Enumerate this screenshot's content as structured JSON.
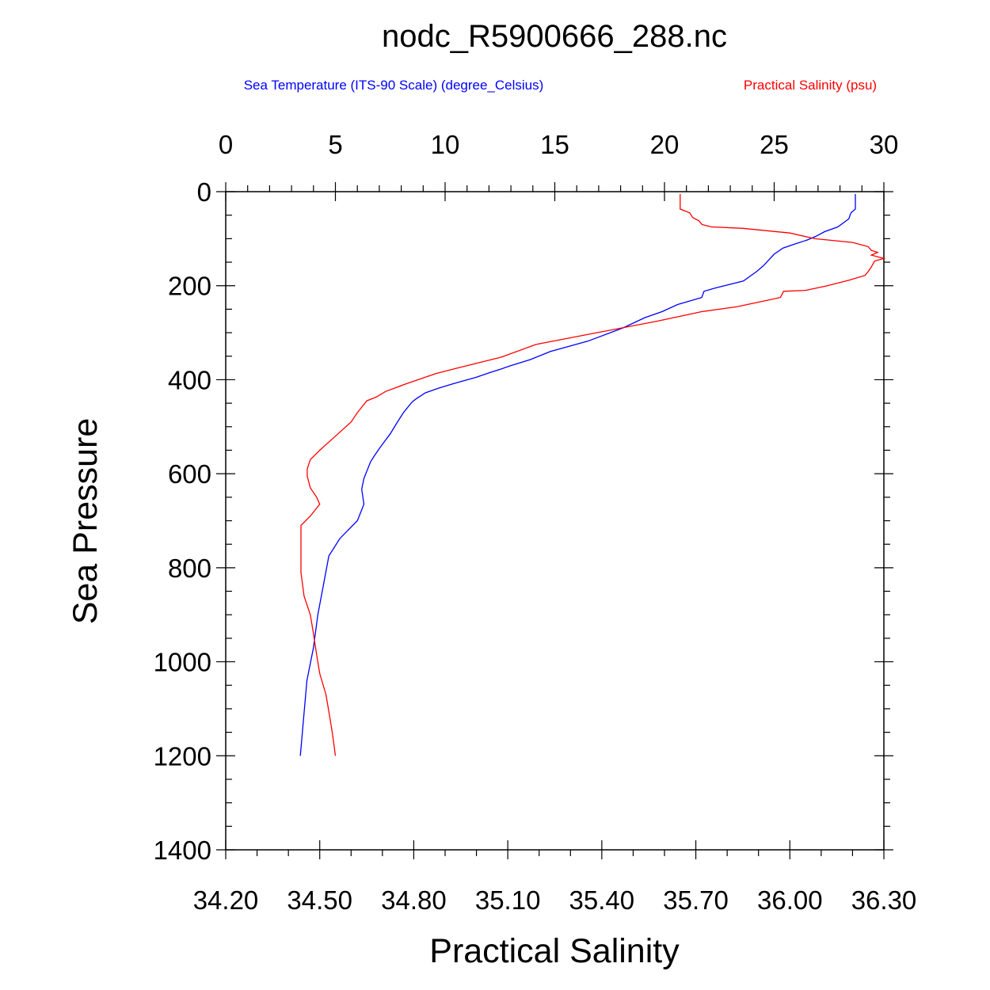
{
  "chart_data": {
    "type": "line",
    "title": "nodc_R5900666_288.nc",
    "xlabel": "Practical Salinity",
    "ylabel": "Sea Pressure",
    "grid": false,
    "legend_placement": "top",
    "y_axis": {
      "range": [
        0,
        1400
      ],
      "inverted": true,
      "ticks": [
        "0",
        "200",
        "400",
        "600",
        "800",
        "1000",
        "1200",
        "1400"
      ]
    },
    "x_axis_bottom": {
      "label": "Practical Salinity",
      "range": [
        34.2,
        36.3
      ],
      "ticks": [
        "34.20",
        "34.50",
        "34.80",
        "35.10",
        "35.40",
        "35.70",
        "36.00",
        "36.30"
      ]
    },
    "x_axis_top": {
      "range": [
        0,
        30
      ],
      "ticks": [
        "0",
        "5",
        "10",
        "15",
        "20",
        "25",
        "30"
      ]
    },
    "series": [
      {
        "name": "Sea Temperature (ITS-90 Scale) (degree_Celsius)",
        "color": "#0000ff",
        "axis": "top",
        "points": [
          [
            28.7,
            5
          ],
          [
            28.7,
            37
          ],
          [
            28.5,
            45
          ],
          [
            28.4,
            58
          ],
          [
            27.9,
            75
          ],
          [
            27.3,
            85
          ],
          [
            26.9,
            95
          ],
          [
            26.5,
            103
          ],
          [
            25.9,
            112
          ],
          [
            25.4,
            120
          ],
          [
            25.0,
            133
          ],
          [
            24.7,
            148
          ],
          [
            24.5,
            158
          ],
          [
            24.2,
            170
          ],
          [
            23.6,
            190
          ],
          [
            22.3,
            205
          ],
          [
            21.8,
            212
          ],
          [
            21.7,
            225
          ],
          [
            20.6,
            240
          ],
          [
            19.9,
            255
          ],
          [
            19.1,
            268
          ],
          [
            18.1,
            290
          ],
          [
            16.5,
            318
          ],
          [
            14.8,
            340
          ],
          [
            13.9,
            357
          ],
          [
            13.0,
            370
          ],
          [
            12.5,
            378
          ],
          [
            12.1,
            384
          ],
          [
            11.4,
            395
          ],
          [
            10.4,
            408
          ],
          [
            9.7,
            418
          ],
          [
            9.1,
            428
          ],
          [
            8.7,
            440
          ],
          [
            8.5,
            447
          ],
          [
            8.1,
            470
          ],
          [
            7.8,
            492
          ],
          [
            7.5,
            515
          ],
          [
            7.1,
            540
          ],
          [
            6.8,
            560
          ],
          [
            6.6,
            575
          ],
          [
            6.3,
            610
          ],
          [
            6.2,
            633
          ],
          [
            6.3,
            665
          ],
          [
            6.0,
            700
          ],
          [
            5.2,
            738
          ],
          [
            4.7,
            775
          ],
          [
            4.4,
            850
          ],
          [
            4.2,
            900
          ],
          [
            4.0,
            970
          ],
          [
            3.7,
            1040
          ],
          [
            3.4,
            1200
          ]
        ]
      },
      {
        "name": "Practical Salinity (psu)",
        "color": "#ff0000",
        "axis": "bottom",
        "points": [
          [
            35.65,
            5
          ],
          [
            35.65,
            37
          ],
          [
            35.68,
            45
          ],
          [
            35.69,
            55
          ],
          [
            35.71,
            62
          ],
          [
            35.72,
            70
          ],
          [
            35.75,
            75
          ],
          [
            35.85,
            78
          ],
          [
            36.0,
            88
          ],
          [
            36.08,
            100
          ],
          [
            36.2,
            108
          ],
          [
            36.25,
            117
          ],
          [
            36.26,
            125
          ],
          [
            36.28,
            129
          ],
          [
            36.26,
            135
          ],
          [
            36.3,
            142
          ],
          [
            36.27,
            148
          ],
          [
            36.26,
            160
          ],
          [
            36.25,
            170
          ],
          [
            36.24,
            178
          ],
          [
            36.19,
            188
          ],
          [
            36.12,
            200
          ],
          [
            36.05,
            210
          ],
          [
            35.98,
            212
          ],
          [
            35.97,
            225
          ],
          [
            35.83,
            245
          ],
          [
            35.72,
            255
          ],
          [
            35.58,
            275
          ],
          [
            35.4,
            298
          ],
          [
            35.19,
            325
          ],
          [
            35.08,
            352
          ],
          [
            34.94,
            375
          ],
          [
            34.87,
            387
          ],
          [
            34.77,
            410
          ],
          [
            34.71,
            425
          ],
          [
            34.68,
            437
          ],
          [
            34.65,
            445
          ],
          [
            34.62,
            470
          ],
          [
            34.6,
            490
          ],
          [
            34.55,
            520
          ],
          [
            34.5,
            550
          ],
          [
            34.47,
            570
          ],
          [
            34.46,
            590
          ],
          [
            34.46,
            605
          ],
          [
            34.47,
            630
          ],
          [
            34.49,
            650
          ],
          [
            34.5,
            665
          ],
          [
            34.47,
            690
          ],
          [
            34.44,
            710
          ],
          [
            34.44,
            740
          ],
          [
            34.44,
            810
          ],
          [
            34.45,
            860
          ],
          [
            34.47,
            900
          ],
          [
            34.48,
            940
          ],
          [
            34.49,
            985
          ],
          [
            34.5,
            1025
          ],
          [
            34.52,
            1070
          ],
          [
            34.53,
            1110
          ],
          [
            34.54,
            1150
          ],
          [
            34.55,
            1200
          ]
        ]
      }
    ]
  }
}
